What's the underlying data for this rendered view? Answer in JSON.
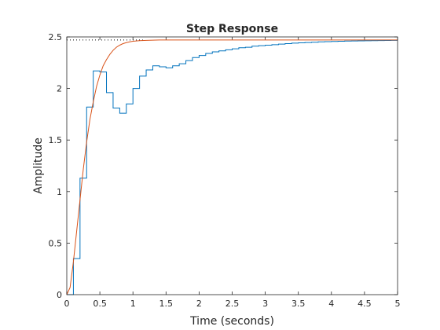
{
  "chart_data": {
    "type": "line",
    "title": "Step Response",
    "xlabel": "Time (seconds)",
    "ylabel": "Amplitude",
    "xlim": [
      0,
      5
    ],
    "ylim": [
      0,
      2.5
    ],
    "xticks": [
      0,
      0.5,
      1,
      1.5,
      2,
      2.5,
      3,
      3.5,
      4,
      4.5,
      5
    ],
    "yticks": [
      0,
      0.5,
      1,
      1.5,
      2,
      2.5
    ],
    "grid": false,
    "steady_state": 2.47,
    "series": [
      {
        "style": "stairs",
        "color": "#0072BD",
        "x": [
          0,
          0.1,
          0.2,
          0.3,
          0.4,
          0.5,
          0.6,
          0.7,
          0.8,
          0.9,
          1.0,
          1.1,
          1.2,
          1.3,
          1.4,
          1.5,
          1.6,
          1.7,
          1.8,
          1.9,
          2.0,
          2.1,
          2.2,
          2.3,
          2.4,
          2.5,
          2.6,
          2.7,
          2.8,
          2.9,
          3.0,
          3.1,
          3.2,
          3.3,
          3.4,
          3.5,
          3.6,
          3.7,
          3.8,
          3.9,
          4.0,
          4.1,
          4.2,
          4.3,
          4.4,
          4.5,
          4.6,
          4.7,
          4.8,
          4.9,
          5.0
        ],
        "y": [
          0,
          0.35,
          1.13,
          1.82,
          2.17,
          2.16,
          1.96,
          1.81,
          1.76,
          1.85,
          2.0,
          2.12,
          2.18,
          2.22,
          2.21,
          2.2,
          2.22,
          2.24,
          2.27,
          2.3,
          2.32,
          2.34,
          2.355,
          2.365,
          2.375,
          2.385,
          2.395,
          2.4,
          2.41,
          2.415,
          2.42,
          2.425,
          2.43,
          2.435,
          2.44,
          2.443,
          2.446,
          2.449,
          2.452,
          2.454,
          2.456,
          2.458,
          2.46,
          2.461,
          2.462,
          2.463,
          2.464,
          2.465,
          2.466,
          2.467,
          2.467
        ]
      },
      {
        "style": "line",
        "color": "#D95319",
        "x": [
          0,
          0.05,
          0.1,
          0.15,
          0.2,
          0.25,
          0.3,
          0.35,
          0.4,
          0.45,
          0.5,
          0.55,
          0.6,
          0.65,
          0.7,
          0.75,
          0.8,
          0.85,
          0.9,
          0.95,
          1.0,
          1.1,
          1.2,
          1.3,
          1.4,
          1.5,
          1.6,
          1.8,
          2.0,
          2.5,
          3.0,
          4.0,
          5.0
        ],
        "y": [
          0,
          0.07,
          0.32,
          0.62,
          0.92,
          1.22,
          1.48,
          1.7,
          1.87,
          2.02,
          2.13,
          2.22,
          2.28,
          2.33,
          2.37,
          2.4,
          2.42,
          2.435,
          2.445,
          2.452,
          2.458,
          2.464,
          2.467,
          2.469,
          2.47,
          2.47,
          2.47,
          2.47,
          2.47,
          2.47,
          2.47,
          2.47,
          2.47
        ]
      }
    ]
  }
}
